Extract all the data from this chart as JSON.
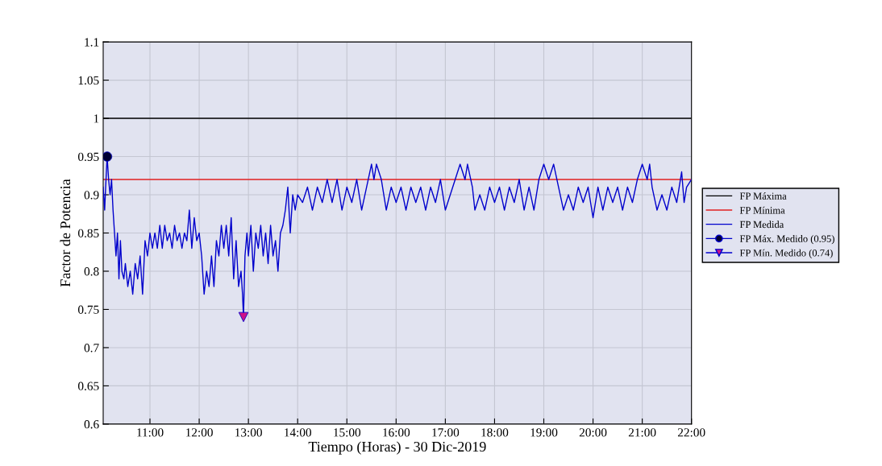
{
  "chart_data": {
    "type": "line",
    "xlabel": "Tiempo (Horas) - 30 Dic-2019",
    "ylabel": "Factor de Potencia",
    "xlim": [
      10.05,
      22
    ],
    "ylim": [
      0.6,
      1.1
    ],
    "xticks": [
      {
        "value": 11,
        "label": "11:00"
      },
      {
        "value": 12,
        "label": "12:00"
      },
      {
        "value": 13,
        "label": "13:00"
      },
      {
        "value": 14,
        "label": "14:00"
      },
      {
        "value": 15,
        "label": "15:00"
      },
      {
        "value": 16,
        "label": "16:00"
      },
      {
        "value": 17,
        "label": "17:00"
      },
      {
        "value": 18,
        "label": "18:00"
      },
      {
        "value": 19,
        "label": "19:00"
      },
      {
        "value": 20,
        "label": "20:00"
      },
      {
        "value": 21,
        "label": "21:00"
      },
      {
        "value": 22,
        "label": "22:00"
      }
    ],
    "yticks": [
      0.6,
      0.65,
      0.7,
      0.75,
      0.8,
      0.85,
      0.9,
      0.95,
      1,
      1.05,
      1.1
    ],
    "grid": true,
    "legend": "right",
    "ref_lines": [
      {
        "axis": "y",
        "value": 1,
        "label": "FP Máxima",
        "color": "#000000"
      },
      {
        "axis": "y",
        "value": 0.92,
        "label": "FP Mínima",
        "color": "#e02020"
      }
    ],
    "series": [
      {
        "name": "FP Medida",
        "color": "#0000cc",
        "marker": "none",
        "x": [
          10.05,
          10.08,
          10.1,
          10.13,
          10.16,
          10.19,
          10.22,
          10.25,
          10.28,
          10.31,
          10.34,
          10.37,
          10.4,
          10.43,
          10.47,
          10.5,
          10.55,
          10.6,
          10.65,
          10.7,
          10.75,
          10.8,
          10.85,
          10.9,
          10.95,
          11.0,
          11.05,
          11.1,
          11.15,
          11.2,
          11.25,
          11.3,
          11.35,
          11.4,
          11.45,
          11.5,
          11.55,
          11.6,
          11.65,
          11.7,
          11.75,
          11.8,
          11.85,
          11.9,
          11.95,
          12.0,
          12.05,
          12.1,
          12.15,
          12.2,
          12.25,
          12.3,
          12.35,
          12.4,
          12.45,
          12.5,
          12.55,
          12.6,
          12.65,
          12.7,
          12.75,
          12.8,
          12.85,
          12.88,
          12.9,
          12.93,
          12.97,
          13.0,
          13.05,
          13.1,
          13.15,
          13.2,
          13.25,
          13.3,
          13.35,
          13.4,
          13.45,
          13.5,
          13.55,
          13.6,
          13.65,
          13.7,
          13.75,
          13.8,
          13.85,
          13.9,
          13.95,
          14.0,
          14.1,
          14.2,
          14.3,
          14.4,
          14.5,
          14.6,
          14.7,
          14.8,
          14.9,
          15.0,
          15.1,
          15.2,
          15.3,
          15.4,
          15.5,
          15.55,
          15.6,
          15.7,
          15.8,
          15.9,
          16.0,
          16.1,
          16.2,
          16.3,
          16.4,
          16.5,
          16.6,
          16.7,
          16.8,
          16.9,
          17.0,
          17.1,
          17.2,
          17.3,
          17.4,
          17.45,
          17.55,
          17.6,
          17.7,
          17.8,
          17.9,
          18.0,
          18.1,
          18.2,
          18.3,
          18.4,
          18.5,
          18.6,
          18.7,
          18.8,
          18.9,
          19.0,
          19.1,
          19.2,
          19.3,
          19.4,
          19.5,
          19.6,
          19.7,
          19.8,
          19.9,
          20.0,
          20.1,
          20.2,
          20.3,
          20.4,
          20.5,
          20.6,
          20.7,
          20.8,
          20.9,
          21.0,
          21.1,
          21.15,
          21.2,
          21.3,
          21.4,
          21.5,
          21.6,
          21.7,
          21.8,
          21.85,
          21.9,
          22.0
        ],
        "values": [
          0.91,
          0.88,
          0.91,
          0.95,
          0.92,
          0.9,
          0.92,
          0.88,
          0.85,
          0.82,
          0.85,
          0.79,
          0.84,
          0.8,
          0.79,
          0.81,
          0.78,
          0.8,
          0.77,
          0.81,
          0.79,
          0.82,
          0.77,
          0.84,
          0.82,
          0.85,
          0.83,
          0.85,
          0.83,
          0.86,
          0.83,
          0.86,
          0.84,
          0.85,
          0.83,
          0.86,
          0.84,
          0.85,
          0.83,
          0.85,
          0.84,
          0.88,
          0.83,
          0.87,
          0.84,
          0.85,
          0.82,
          0.77,
          0.8,
          0.78,
          0.82,
          0.78,
          0.84,
          0.82,
          0.86,
          0.83,
          0.86,
          0.82,
          0.87,
          0.79,
          0.84,
          0.78,
          0.8,
          0.77,
          0.74,
          0.82,
          0.85,
          0.82,
          0.86,
          0.8,
          0.85,
          0.83,
          0.86,
          0.82,
          0.85,
          0.81,
          0.86,
          0.82,
          0.84,
          0.8,
          0.85,
          0.86,
          0.88,
          0.91,
          0.85,
          0.9,
          0.88,
          0.9,
          0.89,
          0.91,
          0.88,
          0.91,
          0.89,
          0.92,
          0.89,
          0.92,
          0.88,
          0.91,
          0.89,
          0.92,
          0.88,
          0.91,
          0.94,
          0.92,
          0.94,
          0.92,
          0.88,
          0.91,
          0.89,
          0.91,
          0.88,
          0.91,
          0.89,
          0.91,
          0.88,
          0.91,
          0.89,
          0.92,
          0.88,
          0.9,
          0.92,
          0.94,
          0.92,
          0.94,
          0.91,
          0.88,
          0.9,
          0.88,
          0.91,
          0.89,
          0.91,
          0.88,
          0.91,
          0.89,
          0.92,
          0.88,
          0.91,
          0.88,
          0.92,
          0.94,
          0.92,
          0.94,
          0.91,
          0.88,
          0.9,
          0.88,
          0.91,
          0.89,
          0.91,
          0.87,
          0.91,
          0.88,
          0.91,
          0.89,
          0.91,
          0.88,
          0.91,
          0.89,
          0.92,
          0.94,
          0.92,
          0.94,
          0.91,
          0.88,
          0.9,
          0.88,
          0.91,
          0.89,
          0.93,
          0.89,
          0.91,
          0.92
        ]
      },
      {
        "name": "FP Máx. Medido (0.95)",
        "type": "scatter",
        "color": "#000033",
        "marker": "circle",
        "x": [
          10.13
        ],
        "values": [
          0.95
        ]
      },
      {
        "name": "FP Mín. Medido (0.74)",
        "type": "scatter",
        "color": "#cc1188",
        "marker": "triangle",
        "x": [
          12.9
        ],
        "values": [
          0.74
        ]
      }
    ]
  }
}
